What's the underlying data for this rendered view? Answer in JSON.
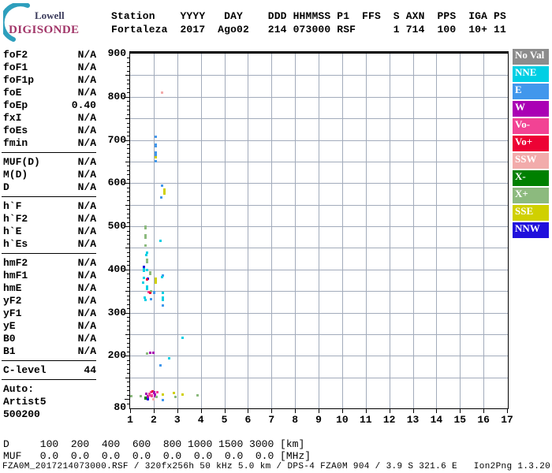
{
  "logo": {
    "company": "Lowell",
    "product": "DIGISONDE"
  },
  "header": {
    "line1": "Station    YYYY   DAY    DDD HHMMSS P1  FFS  S AXN  PPS  IGA PS",
    "line2": "Fortaleza  2017  Ago02   214 073000 RSF      1 714  100  10+ 11"
  },
  "params": {
    "sections": [
      {
        "rows": [
          {
            "label": "foF2",
            "value": "N/A"
          },
          {
            "label": "foF1",
            "value": "N/A"
          },
          {
            "label": "foF1p",
            "value": "N/A"
          },
          {
            "label": "foE",
            "value": "N/A"
          },
          {
            "label": "foEp",
            "value": "0.40"
          },
          {
            "label": "fxI",
            "value": "N/A"
          },
          {
            "label": "foEs",
            "value": "N/A"
          },
          {
            "label": "fmin",
            "value": "N/A"
          }
        ]
      },
      {
        "rows": [
          {
            "label": "MUF(D)",
            "value": "N/A"
          },
          {
            "label": "M(D)",
            "value": "N/A"
          },
          {
            "label": "D",
            "value": "N/A"
          }
        ]
      },
      {
        "rows": [
          {
            "label": "h`F",
            "value": "N/A"
          },
          {
            "label": "h`F2",
            "value": "N/A"
          },
          {
            "label": "h`E",
            "value": "N/A"
          },
          {
            "label": "h`Es",
            "value": "N/A"
          }
        ]
      },
      {
        "rows": [
          {
            "label": "hmF2",
            "value": "N/A"
          },
          {
            "label": "hmF1",
            "value": "N/A"
          },
          {
            "label": "hmE",
            "value": "N/A"
          },
          {
            "label": "yF2",
            "value": "N/A"
          },
          {
            "label": "yF1",
            "value": "N/A"
          },
          {
            "label": "yE",
            "value": "N/A"
          },
          {
            "label": "B0",
            "value": "N/A"
          },
          {
            "label": "B1",
            "value": "N/A"
          }
        ]
      },
      {
        "rows": [
          {
            "label": "C-level",
            "value": "44"
          }
        ]
      },
      {
        "no_divider": true,
        "rows": [
          {
            "label": "Auto:",
            "value": ""
          },
          {
            "label": "Artist5",
            "value": ""
          },
          {
            "label": "500200",
            "value": ""
          }
        ]
      }
    ]
  },
  "legend": {
    "items": [
      {
        "label": "No Val",
        "color": "#8C8C8C"
      },
      {
        "label": "NNE",
        "color": "#00CFE4"
      },
      {
        "label": "E",
        "color": "#4197EC"
      },
      {
        "label": "W",
        "color": "#AA00B4"
      },
      {
        "label": "Vo-",
        "color": "#F24394"
      },
      {
        "label": "Vo+",
        "color": "#ED0235"
      },
      {
        "label": "SSW",
        "color": "#F2ABAB"
      },
      {
        "label": "X-",
        "color": "#008000"
      },
      {
        "label": "X+",
        "color": "#8CBA7E"
      },
      {
        "label": "SSE",
        "color": "#D0D000"
      },
      {
        "label": "NNW",
        "color": "#2010DC"
      }
    ]
  },
  "chart_data": {
    "type": "scatter",
    "title": "Digisonde ionogram, Fortaleza, 2017 day 214 07:30:00",
    "x_axis": {
      "min": 1,
      "max": 17,
      "unit": "MHz",
      "ticks": [
        1,
        2,
        3,
        4,
        5,
        6,
        7,
        8,
        9,
        10,
        11,
        12,
        13,
        14,
        15,
        16,
        17
      ]
    },
    "y_axis": {
      "min": 80,
      "max": 900,
      "unit": "km",
      "grid_step_km": 50,
      "tick_labels": [
        900,
        800,
        700,
        600,
        500,
        400,
        300,
        200,
        80
      ]
    },
    "point_format": "[frequency_MHz, virtual_height_km, direction_category, vertical_extent_km(optional)]",
    "points": [
      [
        2.35,
        810,
        "SSW"
      ],
      [
        2.07,
        708,
        "E"
      ],
      [
        2.07,
        687,
        "E",
        10
      ],
      [
        2.07,
        668,
        "E",
        10
      ],
      [
        2.07,
        659,
        "SSE"
      ],
      [
        2.07,
        651,
        "E"
      ],
      [
        2.33,
        594,
        "E"
      ],
      [
        2.45,
        581,
        "SSE",
        15
      ],
      [
        2.3,
        566,
        "E"
      ],
      [
        1.63,
        497,
        "X+",
        9
      ],
      [
        1.63,
        476,
        "X+",
        12
      ],
      [
        1.65,
        455,
        "X+",
        5
      ],
      [
        2.26,
        466,
        "NNE",
        5
      ],
      [
        1.71,
        438,
        "NNE",
        5
      ],
      [
        1.67,
        433,
        "NNE",
        5
      ],
      [
        1.7,
        420,
        "X+",
        10
      ],
      [
        1.57,
        406,
        "NNW",
        5
      ],
      [
        1.58,
        399,
        "NNE",
        9
      ],
      [
        1.7,
        398,
        "NNE",
        5
      ],
      [
        1.83,
        391,
        "X+",
        9
      ],
      [
        2.37,
        386,
        "E",
        5
      ],
      [
        2.34,
        382,
        "NNE",
        5
      ],
      [
        1.57,
        380,
        "NNE",
        5
      ],
      [
        1.73,
        379,
        "NNW",
        5
      ],
      [
        1.7,
        377,
        "Vo+",
        5
      ],
      [
        2.07,
        374,
        "SSE",
        15
      ],
      [
        1.53,
        369,
        "NNE",
        5
      ],
      [
        1.7,
        358,
        "NNE",
        11
      ],
      [
        1.87,
        350,
        "X+",
        5
      ],
      [
        1.77,
        347,
        "Vo-",
        5
      ],
      [
        1.83,
        346,
        "Vo+",
        5
      ],
      [
        2.0,
        346,
        "E",
        7
      ],
      [
        2.37,
        345,
        "NNE",
        5
      ],
      [
        1.6,
        334,
        "NNE",
        5
      ],
      [
        1.87,
        331,
        "E",
        5
      ],
      [
        2.37,
        332,
        "NNE",
        11
      ],
      [
        1.63,
        330,
        "NNE",
        5
      ],
      [
        2.37,
        316,
        "E",
        5
      ],
      [
        3.2,
        242,
        "NNE",
        5
      ],
      [
        1.7,
        206,
        "X+",
        5
      ],
      [
        1.83,
        207,
        "W",
        5
      ],
      [
        1.97,
        207,
        "W",
        5
      ],
      [
        2.64,
        195,
        "NNE",
        5
      ],
      [
        2.26,
        178,
        "E",
        5
      ],
      [
        1.05,
        106,
        "X+"
      ],
      [
        1.43,
        107,
        "X+"
      ],
      [
        1.63,
        102,
        "X-",
        6
      ],
      [
        1.67,
        112,
        "W",
        7
      ],
      [
        1.73,
        106,
        "W",
        7
      ],
      [
        1.73,
        99,
        "NNW"
      ],
      [
        1.8,
        110,
        "Vo-",
        8
      ],
      [
        1.87,
        116,
        "Vo-",
        6
      ],
      [
        1.9,
        107,
        "Vo-",
        7
      ],
      [
        1.93,
        117,
        "Vo+"
      ],
      [
        1.97,
        99,
        "SSW"
      ],
      [
        2.0,
        115,
        "W",
        7
      ],
      [
        2.03,
        108,
        "W",
        8
      ],
      [
        2.1,
        104,
        "X+",
        6
      ],
      [
        2.13,
        116,
        "Vo-"
      ],
      [
        2.37,
        110,
        "SSE"
      ],
      [
        2.37,
        97,
        "E"
      ],
      [
        2.83,
        114,
        "SSE"
      ],
      [
        2.9,
        104,
        "X+"
      ],
      [
        3.2,
        110,
        "SSE"
      ],
      [
        3.83,
        108,
        "X+"
      ]
    ],
    "legend_position": "right",
    "grid": true
  },
  "footer": {
    "d_row": "D     100  200  400  600  800 1000 1500 3000 [km]",
    "muf_row": "MUF   0.0  0.0  0.0  0.0  0.0  0.0  0.0  0.0 [MHz]",
    "info": "FZA0M_2017214073000.RSF / 320fx256h 50 kHz 5.0 km / DPS-4 FZA0M 904 / 3.9 S 321.6 E   Ion2Png 1.3.20"
  }
}
